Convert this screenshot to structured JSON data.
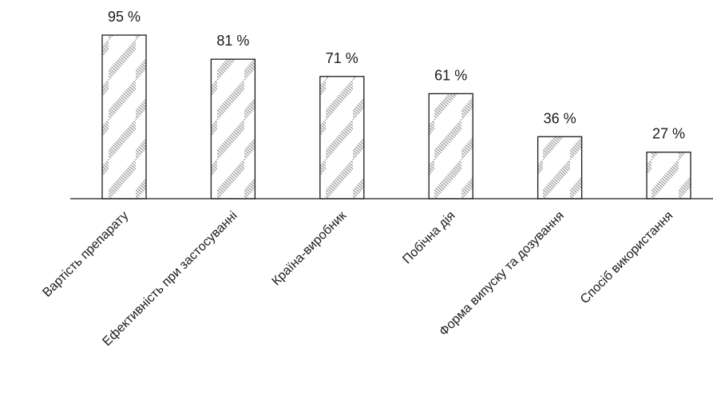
{
  "chart_data": {
    "type": "bar",
    "title": "",
    "xlabel": "",
    "ylabel": "",
    "categories": [
      "Вартість препарату",
      "Ефективність при застосуванні",
      "Країна-виробник",
      "Побічна дія",
      "Форма випуску та дозування",
      "Спосіб використання"
    ],
    "values": [
      95,
      81,
      71,
      61,
      36,
      27
    ],
    "value_labels": [
      "95 %",
      "81 %",
      "71 %",
      "61 %",
      "36 %",
      "27 %"
    ],
    "ylim": [
      0,
      100
    ],
    "grid": false,
    "legend": "none",
    "bar_fill": "hatched",
    "bar_stroke": "#1a1a1a"
  }
}
